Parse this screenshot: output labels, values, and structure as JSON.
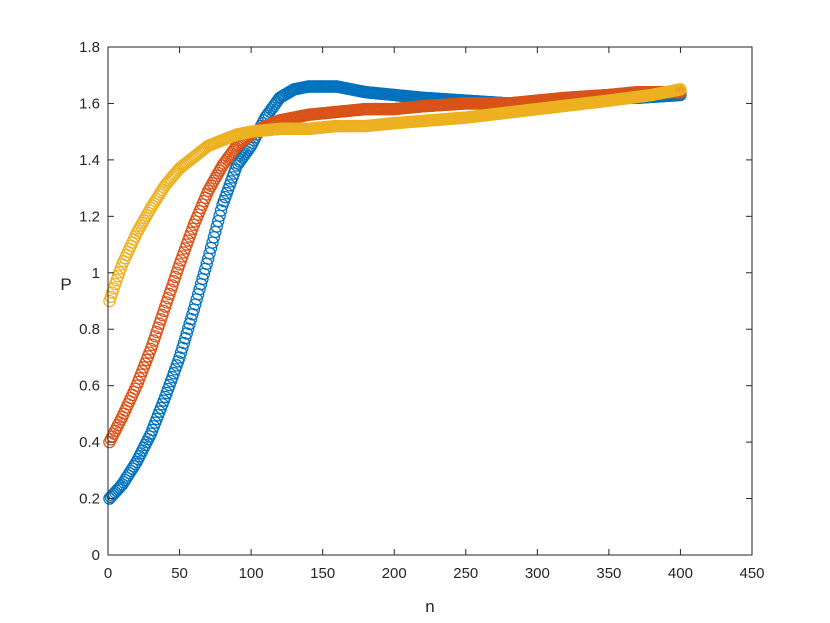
{
  "chart_data": {
    "type": "scatter",
    "title": "",
    "xlabel": "n",
    "ylabel": "P",
    "xlim": [
      0,
      450
    ],
    "ylim": [
      0,
      1.8
    ],
    "xticks": [
      "0",
      "50",
      "100",
      "150",
      "200",
      "250",
      "300",
      "350",
      "400",
      "450"
    ],
    "yticks": [
      "0",
      "0.2",
      "0.4",
      "0.6",
      "0.8",
      "1",
      "1.2",
      "1.4",
      "1.6",
      "1.8"
    ],
    "grid": false,
    "legend": "none",
    "marker": "open-circle",
    "x_range": [
      1,
      400
    ],
    "series": [
      {
        "color": "#0072BD",
        "points": [
          [
            1,
            0.2
          ],
          [
            10,
            0.25
          ],
          [
            20,
            0.33
          ],
          [
            30,
            0.43
          ],
          [
            40,
            0.56
          ],
          [
            50,
            0.7
          ],
          [
            60,
            0.87
          ],
          [
            70,
            1.05
          ],
          [
            80,
            1.24
          ],
          [
            90,
            1.38
          ],
          [
            100,
            1.45
          ],
          [
            110,
            1.55
          ],
          [
            120,
            1.62
          ],
          [
            130,
            1.65
          ],
          [
            140,
            1.66
          ],
          [
            150,
            1.66
          ],
          [
            160,
            1.66
          ],
          [
            170,
            1.65
          ],
          [
            180,
            1.64
          ],
          [
            200,
            1.63
          ],
          [
            220,
            1.62
          ],
          [
            250,
            1.61
          ],
          [
            280,
            1.6
          ],
          [
            300,
            1.6
          ],
          [
            320,
            1.61
          ],
          [
            350,
            1.62
          ],
          [
            370,
            1.62
          ],
          [
            400,
            1.63
          ]
        ]
      },
      {
        "color": "#D95319",
        "points": [
          [
            1,
            0.4
          ],
          [
            10,
            0.49
          ],
          [
            20,
            0.6
          ],
          [
            30,
            0.73
          ],
          [
            40,
            0.88
          ],
          [
            50,
            1.03
          ],
          [
            60,
            1.17
          ],
          [
            70,
            1.29
          ],
          [
            80,
            1.38
          ],
          [
            90,
            1.45
          ],
          [
            100,
            1.49
          ],
          [
            110,
            1.52
          ],
          [
            120,
            1.54
          ],
          [
            140,
            1.56
          ],
          [
            160,
            1.57
          ],
          [
            180,
            1.58
          ],
          [
            200,
            1.58
          ],
          [
            220,
            1.59
          ],
          [
            250,
            1.6
          ],
          [
            280,
            1.6
          ],
          [
            300,
            1.61
          ],
          [
            320,
            1.62
          ],
          [
            350,
            1.63
          ],
          [
            370,
            1.64
          ],
          [
            400,
            1.64
          ]
        ]
      },
      {
        "color": "#EDB120",
        "points": [
          [
            1,
            0.9
          ],
          [
            5,
            0.96
          ],
          [
            10,
            1.03
          ],
          [
            20,
            1.14
          ],
          [
            30,
            1.23
          ],
          [
            40,
            1.31
          ],
          [
            50,
            1.37
          ],
          [
            60,
            1.41
          ],
          [
            70,
            1.45
          ],
          [
            80,
            1.47
          ],
          [
            90,
            1.49
          ],
          [
            100,
            1.5
          ],
          [
            120,
            1.51
          ],
          [
            140,
            1.51
          ],
          [
            160,
            1.52
          ],
          [
            180,
            1.52
          ],
          [
            200,
            1.53
          ],
          [
            250,
            1.55
          ],
          [
            300,
            1.58
          ],
          [
            350,
            1.61
          ],
          [
            380,
            1.63
          ],
          [
            400,
            1.65
          ]
        ]
      }
    ]
  }
}
